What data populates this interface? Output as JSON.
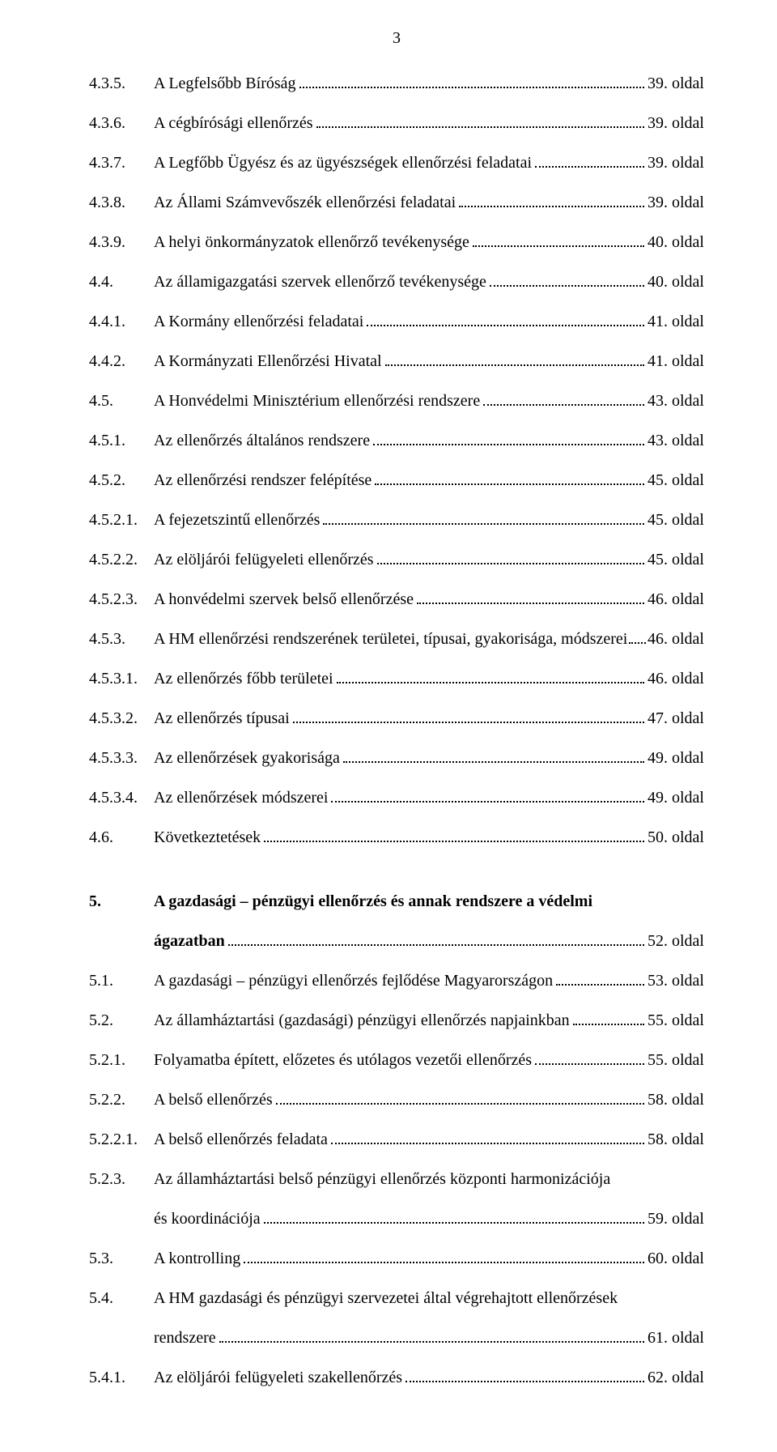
{
  "page_number": "3",
  "suffix": "oldal",
  "entries": [
    {
      "num": "4.3.5.",
      "title": "A Legfelsőbb Bíróság",
      "page": "39."
    },
    {
      "num": "4.3.6.",
      "title": "A cégbírósági ellenőrzés",
      "page": "39."
    },
    {
      "num": "4.3.7.",
      "title": "A Legfőbb Ügyész és az ügyészségek ellenőrzési feladatai",
      "page": "39."
    },
    {
      "num": "4.3.8.",
      "title": "Az Állami Számvevőszék ellenőrzési feladatai",
      "page": "39."
    },
    {
      "num": "4.3.9.",
      "title": "A helyi önkormányzatok ellenőrző tevékenysége",
      "page": "40."
    },
    {
      "num": "4.4.",
      "title": "Az államigazgatási szervek ellenőrző tevékenysége",
      "page": "40."
    },
    {
      "num": "4.4.1.",
      "title": "A Kormány ellenőrzési feladatai",
      "page": "41."
    },
    {
      "num": "4.4.2.",
      "title": "A Kormányzati Ellenőrzési Hivatal",
      "page": "41."
    },
    {
      "num": "4.5.",
      "title": "A Honvédelmi Minisztérium ellenőrzési rendszere",
      "page": "43."
    },
    {
      "num": "4.5.1.",
      "title": "Az ellenőrzés általános rendszere",
      "page": "43."
    },
    {
      "num": "4.5.2.",
      "title": "Az ellenőrzési rendszer felépítése",
      "page": "45."
    },
    {
      "num": "4.5.2.1.",
      "title": "A fejezetszintű ellenőrzés",
      "page": "45."
    },
    {
      "num": "4.5.2.2.",
      "title": "Az elöljárói felügyeleti ellenőrzés",
      "page": "45."
    },
    {
      "num": "4.5.2.3.",
      "title": "A honvédelmi szervek belső ellenőrzése",
      "page": "46."
    },
    {
      "num": "4.5.3.",
      "title": "A HM ellenőrzési rendszerének területei, típusai, gyakorisága, módszerei",
      "page": "46.",
      "tight": true
    },
    {
      "num": "4.5.3.1.",
      "title": "Az ellenőrzés főbb területei",
      "page": "46."
    },
    {
      "num": "4.5.3.2.",
      "title": "Az ellenőrzés típusai",
      "page": "47."
    },
    {
      "num": "4.5.3.3.",
      "title": "Az ellenőrzések gyakorisága",
      "page": "49."
    },
    {
      "num": "4.5.3.4.",
      "title": "Az ellenőrzések módszerei",
      "page": "49."
    },
    {
      "num": "4.6.",
      "title": "Következtetések",
      "page": "50."
    }
  ],
  "entries2": [
    {
      "num": "5.",
      "title_l1": "A gazdasági – pénzügyi ellenőrzés és annak rendszere a védelmi",
      "title_l2": "ágazatban",
      "page": "52.",
      "bold": true,
      "multiline": true
    },
    {
      "num": "5.1.",
      "title": "A gazdasági – pénzügyi ellenőrzés fejlődése Magyarországon",
      "page": "53."
    },
    {
      "num": "5.2.",
      "title": "Az államháztartási (gazdasági) pénzügyi ellenőrzés napjainkban",
      "page": "55."
    },
    {
      "num": "5.2.1.",
      "title": "Folyamatba épített, előzetes és utólagos vezetői ellenőrzés",
      "page": "55."
    },
    {
      "num": "5.2.2.",
      "title": "A belső ellenőrzés",
      "page": "58."
    },
    {
      "num": "5.2.2.1.",
      "title": "A belső ellenőrzés feladata",
      "page": "58."
    },
    {
      "num": "5.2.3.",
      "title_l1": "Az államháztartási belső pénzügyi ellenőrzés központi harmonizációja",
      "title_l2": "és koordinációja",
      "page": "59.",
      "multiline": true
    },
    {
      "num": "5.3.",
      "title": "A kontrolling",
      "page": "60."
    },
    {
      "num": "5.4.",
      "title_l1": "A HM gazdasági és pénzügyi szervezetei által végrehajtott ellenőrzések",
      "title_l2": "rendszere",
      "page": "61.",
      "multiline": true
    },
    {
      "num": "5.4.1.",
      "title": "Az elöljárói felügyeleti szakellenőrzés",
      "page": "62."
    }
  ]
}
